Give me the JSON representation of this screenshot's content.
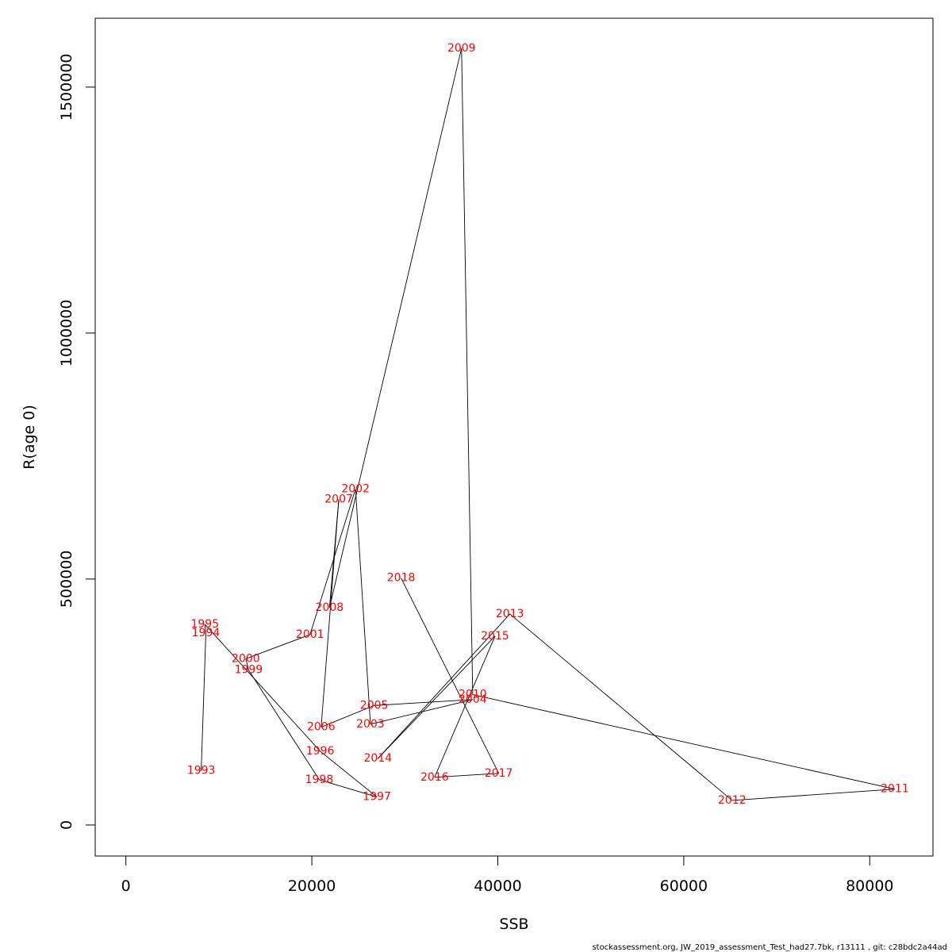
{
  "chart_data": {
    "type": "line",
    "xlabel": "SSB",
    "ylabel": "R(age 0)",
    "xlim": [
      -3300,
      86800
    ],
    "ylim": [
      -63000,
      1640000
    ],
    "x_ticks": [
      0,
      20000,
      40000,
      60000,
      80000
    ],
    "x_tick_labels": [
      "0",
      "20000",
      "40000",
      "60000",
      "80000"
    ],
    "y_ticks": [
      0,
      500000,
      1000000,
      1500000
    ],
    "y_tick_labels": [
      "0",
      "500000",
      "1000000",
      "1500000"
    ],
    "grid": false,
    "points": [
      {
        "label": "1993",
        "x": 8100,
        "y": 110000
      },
      {
        "label": "1994",
        "x": 8600,
        "y": 390000
      },
      {
        "label": "1995",
        "x": 8500,
        "y": 408000
      },
      {
        "label": "1996",
        "x": 20900,
        "y": 150000
      },
      {
        "label": "1997",
        "x": 27000,
        "y": 57000
      },
      {
        "label": "1998",
        "x": 20800,
        "y": 92000
      },
      {
        "label": "1999",
        "x": 13200,
        "y": 315000
      },
      {
        "label": "2000",
        "x": 12900,
        "y": 338000
      },
      {
        "label": "2001",
        "x": 19800,
        "y": 387000
      },
      {
        "label": "2002",
        "x": 24700,
        "y": 683000
      },
      {
        "label": "2003",
        "x": 26300,
        "y": 205000
      },
      {
        "label": "2004",
        "x": 37300,
        "y": 255000
      },
      {
        "label": "2005",
        "x": 26700,
        "y": 243000
      },
      {
        "label": "2006",
        "x": 21000,
        "y": 199000
      },
      {
        "label": "2007",
        "x": 22900,
        "y": 662000
      },
      {
        "label": "2008",
        "x": 21900,
        "y": 442000
      },
      {
        "label": "2009",
        "x": 36100,
        "y": 1579000
      },
      {
        "label": "2010",
        "x": 37300,
        "y": 265000
      },
      {
        "label": "2011",
        "x": 82700,
        "y": 73000
      },
      {
        "label": "2012",
        "x": 65200,
        "y": 50000
      },
      {
        "label": "2013",
        "x": 41300,
        "y": 429000
      },
      {
        "label": "2014",
        "x": 27100,
        "y": 135000
      },
      {
        "label": "2015",
        "x": 39700,
        "y": 384000
      },
      {
        "label": "2016",
        "x": 33200,
        "y": 97000
      },
      {
        "label": "2017",
        "x": 40100,
        "y": 105000
      },
      {
        "label": "2018",
        "x": 29600,
        "y": 502000
      }
    ],
    "footer": "stockassessment.org, JW_2019_assessment_Test_had27.7bk, r13111 , git: c28bdc2a44ad",
    "label_color": "#ff0000",
    "line_color": "#000000"
  }
}
